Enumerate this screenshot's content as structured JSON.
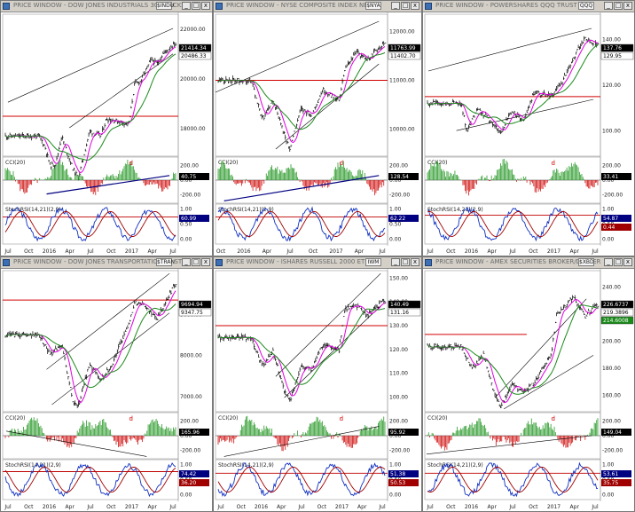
{
  "colors": {
    "price": "#000000",
    "ma_fast": "#e000e0",
    "ma_slow": "#1a8a1a",
    "horizontal": "#d00000",
    "channel": "#000000",
    "cci_up": "#2a9a2a",
    "cci_down": "#d01010",
    "trend": "#000080",
    "stoch_k": "#1030c0",
    "stoch_d": "#a00000",
    "tag_bg": "#000000"
  },
  "icons": {
    "window": "chart-window-icon",
    "minimize": "minimize-icon",
    "maximize": "maximize-icon",
    "close": "close-icon"
  },
  "windows": [
    {
      "title": "PRICE WINDOW - DOW JONES INDUSTRIALS 30 STOCKS",
      "spin": "$INDU",
      "price_ticks": [
        "22000.00",
        "20000.00",
        "18000.00"
      ],
      "price_tags": [
        "21414.34",
        "20486.33"
      ],
      "cci_title": "CCI(20)",
      "cci_ticks": [
        "200.00",
        "0.00",
        "-200.00"
      ],
      "cci_tag": "40.75",
      "cci_marker": "d",
      "stoch_title": "StochRSI(14,21)(2,9)",
      "stoch_ticks": [
        "1.00",
        "0.50",
        "0.00"
      ],
      "stoch_tag": "60.99",
      "x_labels": [
        "Jul",
        "Oct",
        "2016",
        "Apr",
        "Jul",
        "Oct",
        "2017",
        "Apr",
        "Jul"
      ]
    },
    {
      "title": "PRICE WINDOW - NYSE COMPOSITE INDEX NEW",
      "spin": "$NYA",
      "price_ticks": [
        "12000.00",
        "11000.00",
        "10000.00"
      ],
      "price_tags": [
        "11763.99",
        "11402.70"
      ],
      "cci_title": "CCI(20)",
      "cci_ticks": [
        "200.00",
        "0.00",
        "-200.00"
      ],
      "cci_tag": "128.54",
      "cci_marker": "d",
      "stoch_title": "StochRSI(14,21)(2,9)",
      "stoch_ticks": [
        "1.00",
        "0.50",
        "0.00"
      ],
      "stoch_tag": "62.22",
      "x_labels": [
        "Oct",
        "2016",
        "Apr",
        "Jul",
        "Oct",
        "2017",
        "Apr",
        "Jul"
      ]
    },
    {
      "title": "PRICE WINDOW - POWERSHARES QQQ TRUST",
      "spin": "QQQ",
      "price_ticks": [
        "140.00",
        "120.00",
        "100.00"
      ],
      "price_tags": [
        "137.76",
        "129.95"
      ],
      "cci_title": "CCI(20)",
      "cci_ticks": [
        "200.00",
        "0.00",
        "-200.00"
      ],
      "cci_tag": "33.41",
      "cci_marker": "d",
      "stoch_title": "StochRSI(14,21)(2,9)",
      "stoch_ticks": [
        "1.00",
        "0.50",
        "0.00"
      ],
      "stoch_tag": "54.87",
      "stoch_tag2": "0.44",
      "x_labels": [
        "Jul",
        "Oct",
        "2016",
        "Apr",
        "Jul",
        "Oct",
        "2017",
        "Apr",
        "Jul"
      ]
    },
    {
      "title": "PRICE WINDOW - DOW JONES TRANSPORTATION 20 STOCKS",
      "spin": "$TRAN",
      "price_ticks": [
        "9000.00",
        "8000.00",
        "7000.00"
      ],
      "price_tags": [
        "9694.94",
        "9347.75"
      ],
      "cci_title": "CCI(20)",
      "cci_ticks": [
        "200.00",
        "0.00",
        "-200.00"
      ],
      "cci_tag": "165.96",
      "cci_marker": "d",
      "stoch_title": "StochRSI(14,21)(2,9)",
      "stoch_ticks": [
        "1.00",
        "0.50",
        "0.00"
      ],
      "stoch_tag": "74.42",
      "stoch_tag2": "36.20",
      "x_labels": [
        "Jul",
        "Oct",
        "2016",
        "Apr",
        "Jul",
        "Oct",
        "2017",
        "Apr",
        "Jul"
      ]
    },
    {
      "title": "PRICE WINDOW - ISHARES RUSSELL 2000 ETF",
      "spin": "IWM",
      "price_ticks": [
        "150.00",
        "140.00",
        "130.00",
        "120.00",
        "110.00",
        "100.00"
      ],
      "price_tags": [
        "140.49",
        "131.16"
      ],
      "cci_title": "CCI(20)",
      "cci_ticks": [
        "200.00",
        "0.00",
        "-200.00"
      ],
      "cci_tag": "95.92",
      "cci_marker": "d",
      "stoch_title": "StochRSI(14,21)(2,9)",
      "stoch_ticks": [
        "1.00",
        "0.50",
        "0.00"
      ],
      "stoch_tag": "51.38",
      "stoch_tag2": "50.53",
      "x_labels": [
        "Jul",
        "Oct",
        "2016",
        "Apr",
        "Jul",
        "Oct",
        "2017",
        "Apr",
        "Jul"
      ]
    },
    {
      "title": "PRICE WINDOW - AMEX SECURITIES BROKER/DEALER",
      "spin": "$XBD",
      "price_ticks": [
        "240.00",
        "220.00",
        "200.00",
        "180.00",
        "160.00"
      ],
      "price_tags": [
        "226.6737",
        "219.3896",
        "214.6008"
      ],
      "cci_title": "CCI(20)",
      "cci_ticks": [
        "200.00",
        "0.00",
        "-200.00"
      ],
      "cci_tag": "149.04",
      "cci_marker": "d",
      "stoch_title": "StochRSI(14,21)(2,9)",
      "stoch_ticks": [
        "1.00",
        "0.50",
        "0.00"
      ],
      "stoch_tag": "53.61",
      "stoch_tag2": "35.75",
      "x_labels": [
        "Jul",
        "Oct",
        "2016",
        "Apr",
        "Jul",
        "Oct",
        "2017",
        "Apr",
        "Jul"
      ]
    }
  ],
  "chart_data": [
    {
      "type": "line",
      "title": "",
      "price": [
        {
          "x": "Jul 2015",
          "y": 17700
        },
        {
          "x": "Aug 2015",
          "y": 17300
        },
        {
          "x": "Sep 2015",
          "y": 16500
        },
        {
          "x": "Oct 2015",
          "y": 16600
        },
        {
          "x": "Nov 2015",
          "y": 17700
        },
        {
          "x": "Jan 2016",
          "y": 16400
        },
        {
          "x": "Feb 2016",
          "y": 16000
        },
        {
          "x": "Apr 2016",
          "y": 17900
        },
        {
          "x": "Jun 2016",
          "y": 17700
        },
        {
          "x": "Jul 2016",
          "y": 18400
        },
        {
          "x": "Sep 2016",
          "y": 18300
        },
        {
          "x": "Nov 2016",
          "y": 18200
        },
        {
          "x": "Dec 2016",
          "y": 19800
        },
        {
          "x": "Jan 2017",
          "y": 19900
        },
        {
          "x": "Mar 2017",
          "y": 20800
        },
        {
          "x": "Apr 2017",
          "y": 20600
        },
        {
          "x": "May 2017",
          "y": 21000
        },
        {
          "x": "Jul 2017",
          "y": 21414.34
        }
      ],
      "horizontal_line": 18500,
      "ylim": [
        17000,
        22500
      ],
      "cci_last": 40.75,
      "stochrsi_last": 60.99
    },
    {
      "type": "line",
      "title": "",
      "price": [
        {
          "x": "Jul 2015",
          "y": 11000
        },
        {
          "x": "Sep 2015",
          "y": 10200
        },
        {
          "x": "Nov 2015",
          "y": 10600
        },
        {
          "x": "Jan 2016",
          "y": 9900
        },
        {
          "x": "Feb 2016",
          "y": 9600
        },
        {
          "x": "Apr 2016",
          "y": 10400
        },
        {
          "x": "Jun 2016",
          "y": 10300
        },
        {
          "x": "Aug 2016",
          "y": 10800
        },
        {
          "x": "Nov 2016",
          "y": 10600
        },
        {
          "x": "Dec 2016",
          "y": 11200
        },
        {
          "x": "Feb 2017",
          "y": 11600
        },
        {
          "x": "Apr 2017",
          "y": 11400
        },
        {
          "x": "Jul 2017",
          "y": 11763.99
        }
      ],
      "horizontal_line": 11000,
      "ylim": [
        9500,
        12300
      ],
      "cci_last": 128.54,
      "stochrsi_last": 62.22
    },
    {
      "type": "line",
      "title": "",
      "price": [
        {
          "x": "Jul 2015",
          "y": 112
        },
        {
          "x": "Aug 2015",
          "y": 100
        },
        {
          "x": "Oct 2015",
          "y": 110
        },
        {
          "x": "Jan 2016",
          "y": 102
        },
        {
          "x": "Feb 2016",
          "y": 99
        },
        {
          "x": "Apr 2016",
          "y": 109
        },
        {
          "x": "Jun 2016",
          "y": 104
        },
        {
          "x": "Aug 2016",
          "y": 117
        },
        {
          "x": "Nov 2016",
          "y": 115
        },
        {
          "x": "Jan 2017",
          "y": 122
        },
        {
          "x": "Mar 2017",
          "y": 132
        },
        {
          "x": "May 2017",
          "y": 141
        },
        {
          "x": "Jul 2017",
          "y": 137.76
        }
      ],
      "horizontal_line": 115,
      "ylim": [
        90,
        150
      ],
      "cci_last": 33.41,
      "stochrsi_last": 54.87
    },
    {
      "type": "line",
      "title": "",
      "price": [
        {
          "x": "Jul 2015",
          "y": 8500
        },
        {
          "x": "Sep 2015",
          "y": 8000
        },
        {
          "x": "Nov 2015",
          "y": 8300
        },
        {
          "x": "Jan 2016",
          "y": 6900
        },
        {
          "x": "Feb 2016",
          "y": 6800
        },
        {
          "x": "Apr 2016",
          "y": 7800
        },
        {
          "x": "Jun 2016",
          "y": 7400
        },
        {
          "x": "Aug 2016",
          "y": 7800
        },
        {
          "x": "Nov 2016",
          "y": 8800
        },
        {
          "x": "Dec 2016",
          "y": 9300
        },
        {
          "x": "Feb 2017",
          "y": 9200
        },
        {
          "x": "Apr 2017",
          "y": 8900
        },
        {
          "x": "Jul 2017",
          "y": 9694.94
        }
      ],
      "horizontal_line": 9350,
      "ylim": [
        6700,
        10000
      ],
      "cci_last": 165.96,
      "stochrsi_last": 74.42
    },
    {
      "type": "line",
      "title": "",
      "price": [
        {
          "x": "Jul 2015",
          "y": 125
        },
        {
          "x": "Sep 2015",
          "y": 113
        },
        {
          "x": "Nov 2015",
          "y": 119
        },
        {
          "x": "Jan 2016",
          "y": 103
        },
        {
          "x": "Feb 2016",
          "y": 98
        },
        {
          "x": "Apr 2016",
          "y": 113
        },
        {
          "x": "Jun 2016",
          "y": 112
        },
        {
          "x": "Aug 2016",
          "y": 122
        },
        {
          "x": "Nov 2016",
          "y": 120
        },
        {
          "x": "Dec 2016",
          "y": 137
        },
        {
          "x": "Feb 2017",
          "y": 139
        },
        {
          "x": "Apr 2017",
          "y": 134
        },
        {
          "x": "Jul 2017",
          "y": 140.49
        }
      ],
      "horizontal_line": 130,
      "ylim": [
        95,
        152
      ],
      "cci_last": 95.92,
      "stochrsi_last": 51.38
    },
    {
      "type": "line",
      "title": "",
      "price": [
        {
          "x": "Jul 2015",
          "y": 196
        },
        {
          "x": "Sep 2015",
          "y": 180
        },
        {
          "x": "Nov 2015",
          "y": 190
        },
        {
          "x": "Jan 2016",
          "y": 160
        },
        {
          "x": "Feb 2016",
          "y": 152
        },
        {
          "x": "Apr 2016",
          "y": 168
        },
        {
          "x": "Jun 2016",
          "y": 162
        },
        {
          "x": "Aug 2016",
          "y": 170
        },
        {
          "x": "Nov 2016",
          "y": 190
        },
        {
          "x": "Dec 2016",
          "y": 220
        },
        {
          "x": "Mar 2017",
          "y": 232
        },
        {
          "x": "May 2017",
          "y": 218
        },
        {
          "x": "Jul 2017",
          "y": 226.67
        }
      ],
      "horizontal_line": 205,
      "ylim": [
        150,
        250
      ],
      "cci_last": 149.04,
      "stochrsi_last": 53.61
    }
  ]
}
